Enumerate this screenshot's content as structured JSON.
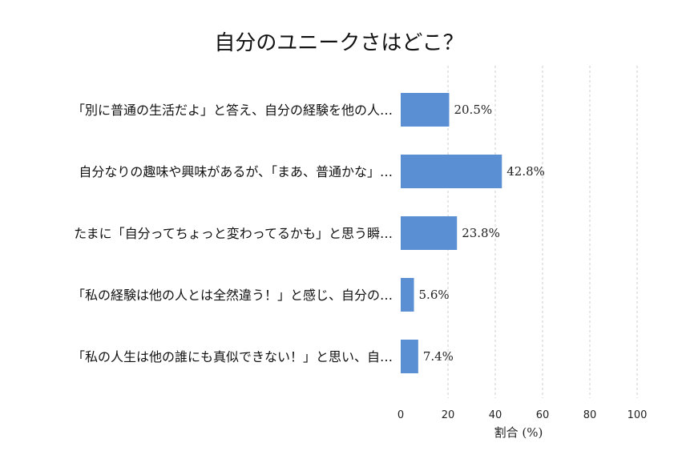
{
  "chart_data": {
    "type": "bar",
    "orientation": "horizontal",
    "title": "自分のユニークさはどこ？",
    "xlabel": "割合 (%)",
    "ylabel": "",
    "xlim": [
      0,
      100
    ],
    "xticks": [
      0,
      20,
      40,
      60,
      80,
      100
    ],
    "grid": true,
    "bar_color": "#5b8fd3",
    "categories": [
      "「別に普通の生活だよ」と答え、自分の経験を他の人…",
      "自分なりの趣味や興味があるが、「まあ、普通かな」…",
      "たまに「自分ってちょっと変わってるかも」と思う瞬…",
      "「私の経験は他の人とは全然違う！」と感じ、自分の…",
      "「私の人生は他の誰にも真似できない！」と思い、自…"
    ],
    "values": [
      20.5,
      42.8,
      23.8,
      5.6,
      7.4
    ],
    "value_labels": [
      "20.5%",
      "42.8%",
      "23.8%",
      "5.6%",
      "7.4%"
    ]
  }
}
